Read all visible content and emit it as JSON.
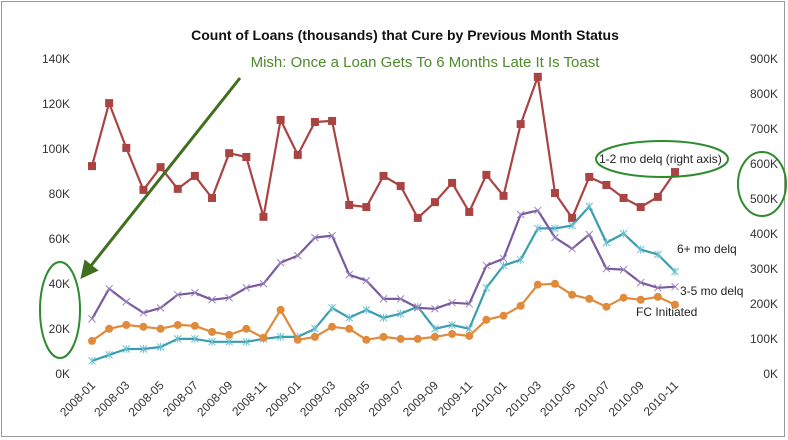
{
  "chart_data": {
    "type": "line",
    "title": "Count of Loans (thousands) that Cure by Previous Month Status",
    "annotation": "Mish: Once a Loan Gets To 6 Months Late It Is Toast",
    "x": [
      "2008-01",
      "2008-02",
      "2008-03",
      "2008-04",
      "2008-05",
      "2008-06",
      "2008-07",
      "2008-08",
      "2008-09",
      "2008-10",
      "2008-11",
      "2008-12",
      "2009-01",
      "2009-02",
      "2009-03",
      "2009-04",
      "2009-05",
      "2009-06",
      "2009-07",
      "2009-08",
      "2009-09",
      "2009-10",
      "2009-11",
      "2009-12",
      "2010-01",
      "2010-02",
      "2010-03",
      "2010-04",
      "2010-05",
      "2010-06",
      "2010-07",
      "2010-08",
      "2010-09",
      "2010-10",
      "2010-11"
    ],
    "x_tick_labels": [
      "2008-01",
      "2008-03",
      "2008-05",
      "2008-07",
      "2008-09",
      "2008-11",
      "2009-01",
      "2009-03",
      "2009-05",
      "2009-07",
      "2009-09",
      "2009-11",
      "2010-01",
      "2010-03",
      "2010-05",
      "2010-07",
      "2010-09",
      "2010-11"
    ],
    "left_axis": {
      "ylim": [
        0,
        140
      ],
      "ticks": [
        "0K",
        "20K",
        "40K",
        "60K",
        "80K",
        "100K",
        "120K",
        "140K"
      ]
    },
    "right_axis": {
      "ylim": [
        0,
        900
      ],
      "ticks": [
        "0K",
        "100K",
        "200K",
        "300K",
        "400K",
        "500K",
        "600K",
        "700K",
        "800K",
        "900K"
      ]
    },
    "series": [
      {
        "name": "1-2 mo delq (right axis)",
        "axis": "right",
        "color": "#a94442",
        "marker": "square",
        "values": [
          594,
          774,
          646,
          526,
          591,
          529,
          566,
          503,
          631,
          620,
          449,
          726,
          626,
          720,
          723,
          483,
          477,
          566,
          537,
          446,
          491,
          546,
          463,
          569,
          509,
          714,
          849,
          517,
          446,
          563,
          540,
          503,
          477,
          506,
          577
        ]
      },
      {
        "name": "6+ mo delq",
        "axis": "left",
        "color": "#3a9db0",
        "marker": "star",
        "values": [
          5.8,
          8.5,
          11.1,
          11.1,
          12.0,
          15.6,
          15.6,
          14.3,
          14.3,
          14.3,
          15.6,
          16.5,
          16.5,
          20.1,
          29.4,
          25.0,
          28.5,
          25.0,
          26.8,
          29.9,
          20.1,
          21.8,
          20.1,
          38.3,
          48.2,
          50.8,
          64.7,
          64.7,
          66.0,
          74.5,
          58.4,
          62.4,
          55.3,
          53.1,
          45.5
        ]
      },
      {
        "name": "3-5 mo delq",
        "axis": "left",
        "color": "#7a5a9e",
        "marker": "x",
        "values": [
          24.5,
          37.9,
          32.1,
          27.2,
          29.4,
          35.2,
          36.1,
          33.0,
          33.9,
          38.3,
          40.1,
          49.5,
          52.6,
          60.6,
          61.5,
          44.1,
          41.5,
          33.4,
          33.4,
          29.4,
          29.0,
          31.7,
          31.2,
          48.2,
          51.3,
          70.9,
          72.7,
          60.6,
          55.7,
          62.0,
          46.8,
          46.4,
          40.6,
          38.3,
          38.8
        ]
      },
      {
        "name": "FC Initiated",
        "axis": "left",
        "color": "#e08a3c",
        "marker": "circle",
        "values": [
          14.7,
          20.1,
          21.8,
          21.0,
          20.1,
          21.8,
          21.4,
          18.7,
          17.4,
          20.1,
          16.1,
          28.5,
          15.2,
          16.5,
          21.0,
          20.1,
          15.2,
          16.5,
          15.6,
          15.6,
          16.5,
          17.8,
          16.9,
          24.1,
          25.9,
          30.3,
          39.7,
          40.1,
          35.2,
          33.4,
          29.9,
          33.9,
          33.0,
          34.3,
          30.8
        ]
      }
    ],
    "grid": false,
    "legend": "inline labels at line ends"
  }
}
